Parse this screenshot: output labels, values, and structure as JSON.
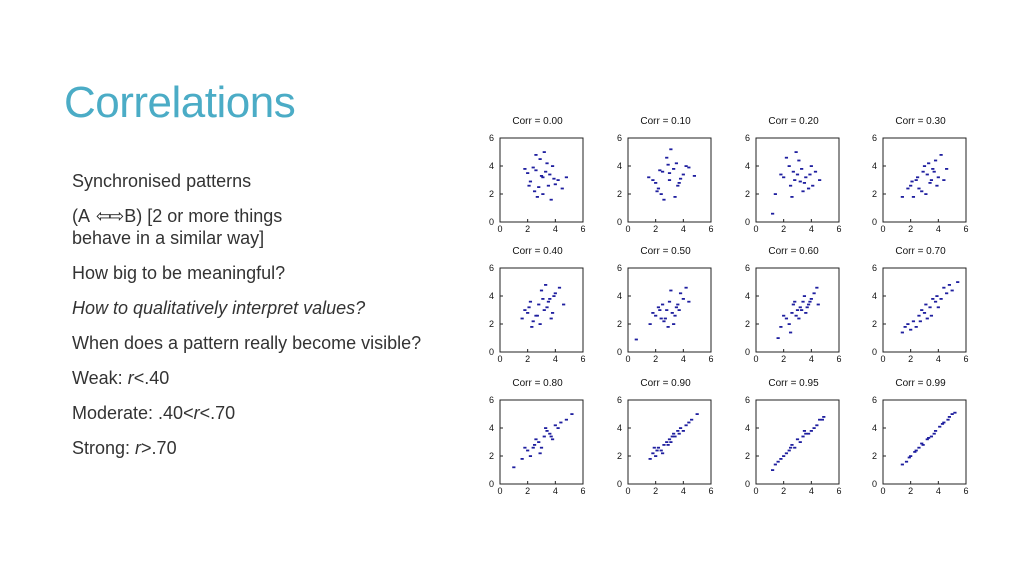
{
  "slide": {
    "title": "Correlations",
    "bullets": {
      "b1": "Synchronised patterns",
      "b2_pre": "(A",
      "b2_arrows": "⇦⇨",
      "b2_post": "B)  [2 or more things",
      "b2_line2": "behave in a similar way]",
      "b3": "How big to be meaningful?",
      "b4": "How to qualitatively interpret values?",
      "b5": "When does a pattern really become visible?",
      "b6_pre": "Weak: ",
      "b6_r": "r",
      "b6_post": "<.40",
      "b7_pre": "Moderate: .40<",
      "b7_r": "r",
      "b7_post": "<.70",
      "b8_pre": "Strong: ",
      "b8_r": "r",
      "b8_post": ">.70"
    }
  },
  "colors": {
    "title": "#4bacc6",
    "points": "#1f1f9f",
    "text": "#333333"
  },
  "chart_data": [
    {
      "type": "scatter",
      "title": "Corr = 0.00",
      "xlim": [
        0,
        6
      ],
      "ylim": [
        0,
        6
      ],
      "xticks": [
        "0",
        "2",
        "4",
        "6"
      ],
      "yticks": [
        "0",
        "2",
        "4",
        "6"
      ],
      "x": [
        2.0,
        2.6,
        3.1,
        3.5,
        2.2,
        3.8,
        4.2,
        2.9,
        3.3,
        2.5,
        4.0,
        3.6,
        1.8,
        2.7,
        3.0,
        4.5,
        3.2,
        2.4,
        3.9,
        2.8,
        3.4,
        4.8,
        2.1,
        3.7,
        2.6,
        3.1
      ],
      "y": [
        3.5,
        4.8,
        3.2,
        2.6,
        2.9,
        4.0,
        3.0,
        4.5,
        3.6,
        2.2,
        2.7,
        3.4,
        3.8,
        1.8,
        3.3,
        2.4,
        5.0,
        3.9,
        3.1,
        2.5,
        4.2,
        3.2,
        2.6,
        1.6,
        3.7,
        2.0
      ]
    },
    {
      "type": "scatter",
      "title": "Corr = 0.10",
      "xlim": [
        0,
        6
      ],
      "ylim": [
        0,
        6
      ],
      "xticks": [
        "0",
        "2",
        "4",
        "6"
      ],
      "yticks": [
        "0",
        "2",
        "4",
        "6"
      ],
      "x": [
        1.5,
        2.0,
        2.5,
        3.0,
        3.5,
        4.0,
        2.2,
        2.8,
        3.3,
        3.8,
        4.4,
        2.4,
        3.1,
        3.6,
        1.8,
        2.6,
        4.2,
        3.0,
        2.1,
        3.4,
        4.8,
        2.9,
        3.7,
        2.3
      ],
      "y": [
        3.2,
        2.8,
        3.6,
        3.0,
        4.2,
        3.4,
        2.4,
        4.6,
        3.8,
        3.1,
        3.9,
        2.0,
        5.2,
        2.6,
        3.0,
        1.6,
        4.0,
        3.5,
        2.2,
        1.8,
        3.3,
        4.1,
        2.8,
        3.7
      ]
    },
    {
      "type": "scatter",
      "title": "Corr = 0.20",
      "xlim": [
        0,
        6
      ],
      "ylim": [
        0,
        6
      ],
      "xticks": [
        "0",
        "2",
        "4",
        "6"
      ],
      "yticks": [
        "0",
        "2",
        "4",
        "6"
      ],
      "x": [
        1.4,
        2.0,
        2.5,
        3.0,
        3.5,
        4.0,
        2.2,
        2.8,
        3.3,
        3.8,
        4.3,
        2.6,
        3.1,
        3.6,
        1.8,
        4.6,
        2.9,
        3.4,
        2.4,
        3.9,
        1.2,
        3.2,
        4.1,
        2.7
      ],
      "y": [
        2.0,
        3.2,
        2.6,
        3.4,
        2.8,
        4.0,
        4.6,
        3.0,
        3.8,
        2.4,
        3.6,
        1.8,
        4.4,
        3.2,
        3.4,
        3.0,
        5.0,
        2.2,
        4.0,
        3.4,
        0.6,
        2.9,
        2.6,
        3.6
      ]
    },
    {
      "type": "scatter",
      "title": "Corr = 0.30",
      "xlim": [
        0,
        6
      ],
      "ylim": [
        0,
        6
      ],
      "xticks": [
        "0",
        "2",
        "4",
        "6"
      ],
      "yticks": [
        "0",
        "2",
        "4",
        "6"
      ],
      "x": [
        1.4,
        2.0,
        2.4,
        2.8,
        3.2,
        3.6,
        4.0,
        2.2,
        2.9,
        3.4,
        3.8,
        4.4,
        2.6,
        3.0,
        3.5,
        4.2,
        1.8,
        3.1,
        3.7,
        2.5,
        4.6,
        3.3,
        2.1,
        3.9
      ],
      "y": [
        1.8,
        2.6,
        3.0,
        2.2,
        3.4,
        3.8,
        3.2,
        1.8,
        3.6,
        2.8,
        4.4,
        3.0,
        2.4,
        4.0,
        3.0,
        4.8,
        2.4,
        2.0,
        3.6,
        3.2,
        3.8,
        4.2,
        2.9,
        2.6
      ]
    },
    {
      "type": "scatter",
      "title": "Corr = 0.40",
      "xlim": [
        0,
        6
      ],
      "ylim": [
        0,
        6
      ],
      "xticks": [
        "0",
        "2",
        "4",
        "6"
      ],
      "yticks": [
        "0",
        "2",
        "4",
        "6"
      ],
      "x": [
        1.6,
        2.0,
        2.4,
        2.8,
        3.2,
        3.6,
        4.0,
        2.2,
        2.6,
        3.0,
        3.4,
        3.8,
        4.3,
        1.8,
        2.9,
        3.5,
        2.3,
        3.1,
        3.9,
        2.7,
        3.3,
        4.6,
        2.1,
        3.7
      ],
      "y": [
        2.4,
        2.8,
        2.2,
        3.4,
        3.0,
        3.8,
        4.2,
        3.6,
        2.6,
        4.4,
        3.2,
        2.8,
        4.6,
        3.0,
        2.0,
        3.6,
        1.8,
        3.8,
        4.0,
        2.6,
        4.8,
        3.4,
        3.2,
        2.4
      ]
    },
    {
      "type": "scatter",
      "title": "Corr = 0.50",
      "xlim": [
        0,
        6
      ],
      "ylim": [
        0,
        6
      ],
      "xticks": [
        "0",
        "2",
        "4",
        "6"
      ],
      "yticks": [
        "0",
        "2",
        "4",
        "6"
      ],
      "x": [
        1.6,
        2.0,
        2.4,
        2.8,
        3.2,
        3.6,
        4.0,
        2.2,
        2.6,
        3.0,
        3.4,
        3.8,
        4.4,
        1.8,
        2.9,
        3.5,
        2.3,
        3.1,
        4.2,
        2.7,
        3.3,
        0.6,
        3.7,
        2.5
      ],
      "y": [
        2.0,
        2.6,
        2.4,
        3.0,
        2.8,
        3.4,
        3.8,
        3.2,
        2.2,
        3.6,
        2.6,
        4.2,
        3.6,
        2.8,
        1.8,
        3.2,
        3.0,
        4.4,
        4.6,
        2.4,
        2.0,
        0.9,
        3.0,
        3.4
      ]
    },
    {
      "type": "scatter",
      "title": "Corr = 0.60",
      "xlim": [
        0,
        6
      ],
      "ylim": [
        0,
        6
      ],
      "xticks": [
        "0",
        "2",
        "4",
        "6"
      ],
      "yticks": [
        "0",
        "2",
        "4",
        "6"
      ],
      "x": [
        1.8,
        2.2,
        2.6,
        3.0,
        3.4,
        3.8,
        4.2,
        2.4,
        2.8,
        3.2,
        3.6,
        4.0,
        4.5,
        2.0,
        3.1,
        3.5,
        2.7,
        3.3,
        3.9,
        2.5,
        4.4,
        1.6,
        3.7,
        2.9
      ],
      "y": [
        1.8,
        2.4,
        2.8,
        3.0,
        3.6,
        3.4,
        4.2,
        2.0,
        3.6,
        3.2,
        2.8,
        3.8,
        3.4,
        2.6,
        2.4,
        4.0,
        3.4,
        3.0,
        3.6,
        1.4,
        4.6,
        1.0,
        3.2,
        2.6
      ]
    },
    {
      "type": "scatter",
      "title": "Corr = 0.70",
      "xlim": [
        0,
        6
      ],
      "ylim": [
        0,
        6
      ],
      "xticks": [
        "0",
        "2",
        "4",
        "6"
      ],
      "yticks": [
        "0",
        "2",
        "4",
        "6"
      ],
      "x": [
        1.4,
        1.8,
        2.2,
        2.6,
        3.0,
        3.4,
        3.8,
        4.2,
        4.6,
        5.0,
        2.4,
        2.8,
        3.2,
        3.6,
        4.0,
        4.4,
        5.4,
        2.0,
        3.1,
        3.5,
        4.8,
        2.7,
        3.9,
        1.6
      ],
      "y": [
        1.4,
        2.0,
        2.2,
        2.6,
        2.8,
        3.2,
        3.6,
        3.8,
        4.2,
        4.4,
        1.8,
        3.0,
        2.4,
        3.8,
        3.2,
        4.6,
        5.0,
        1.6,
        3.4,
        2.6,
        4.8,
        2.2,
        4.0,
        1.8
      ]
    },
    {
      "type": "scatter",
      "title": "Corr = 0.80",
      "xlim": [
        0,
        6
      ],
      "ylim": [
        0,
        6
      ],
      "xticks": [
        "0",
        "2",
        "4",
        "6"
      ],
      "yticks": [
        "0",
        "2",
        "4",
        "6"
      ],
      "x": [
        1.0,
        1.6,
        2.0,
        2.4,
        2.8,
        3.2,
        3.6,
        4.0,
        4.4,
        4.8,
        2.2,
        2.6,
        3.0,
        3.4,
        3.8,
        5.2,
        1.8,
        2.9,
        3.3,
        4.2,
        2.5,
        3.7
      ],
      "y": [
        1.2,
        1.8,
        2.4,
        2.6,
        3.0,
        3.4,
        3.6,
        4.2,
        4.4,
        4.6,
        2.0,
        3.2,
        2.6,
        3.8,
        3.2,
        5.0,
        2.6,
        2.2,
        4.0,
        4.0,
        2.8,
        3.4
      ]
    },
    {
      "type": "scatter",
      "title": "Corr = 0.90",
      "xlim": [
        0,
        6
      ],
      "ylim": [
        0,
        6
      ],
      "xticks": [
        "0",
        "2",
        "4",
        "6"
      ],
      "yticks": [
        "0",
        "2",
        "4",
        "6"
      ],
      "x": [
        1.6,
        1.8,
        2.0,
        2.2,
        2.4,
        2.6,
        2.8,
        3.0,
        3.2,
        3.4,
        3.6,
        3.8,
        4.0,
        4.2,
        4.6,
        5.0,
        2.1,
        2.5,
        2.9,
        3.3,
        3.7,
        4.4,
        1.9,
        3.1
      ],
      "y": [
        1.8,
        2.2,
        2.0,
        2.6,
        2.4,
        2.8,
        3.0,
        3.2,
        3.4,
        3.4,
        3.8,
        4.0,
        3.8,
        4.2,
        4.6,
        5.0,
        2.4,
        2.2,
        2.8,
        3.6,
        3.6,
        4.4,
        2.6,
        3.0
      ]
    },
    {
      "type": "scatter",
      "title": "Corr = 0.95",
      "xlim": [
        0,
        6
      ],
      "ylim": [
        0,
        6
      ],
      "xticks": [
        "0",
        "2",
        "4",
        "6"
      ],
      "yticks": [
        "0",
        "2",
        "4",
        "6"
      ],
      "x": [
        1.2,
        1.6,
        2.0,
        2.4,
        2.8,
        3.2,
        3.6,
        4.0,
        4.4,
        4.8,
        1.8,
        2.2,
        2.6,
        3.0,
        3.4,
        3.8,
        4.2,
        4.6,
        2.5,
        3.5,
        1.4,
        4.9
      ],
      "y": [
        1.0,
        1.6,
        2.0,
        2.4,
        2.6,
        3.0,
        3.6,
        3.8,
        4.2,
        4.6,
        1.8,
        2.2,
        2.8,
        3.2,
        3.4,
        3.6,
        4.0,
        4.6,
        2.6,
        3.8,
        1.4,
        4.8
      ]
    },
    {
      "type": "scatter",
      "title": "Corr = 0.99",
      "xlim": [
        0,
        6
      ],
      "ylim": [
        0,
        6
      ],
      "xticks": [
        "0",
        "2",
        "4",
        "6"
      ],
      "yticks": [
        "0",
        "2",
        "4",
        "6"
      ],
      "x": [
        1.4,
        1.7,
        2.0,
        2.3,
        2.6,
        2.9,
        3.2,
        3.5,
        3.8,
        4.1,
        4.4,
        4.7,
        5.0,
        5.2,
        1.9,
        2.4,
        2.8,
        3.3,
        3.7,
        4.3,
        4.8
      ],
      "y": [
        1.4,
        1.6,
        2.0,
        2.3,
        2.6,
        2.8,
        3.2,
        3.4,
        3.8,
        4.1,
        4.4,
        4.6,
        5.0,
        5.1,
        1.9,
        2.4,
        2.9,
        3.3,
        3.6,
        4.3,
        4.8
      ]
    }
  ]
}
